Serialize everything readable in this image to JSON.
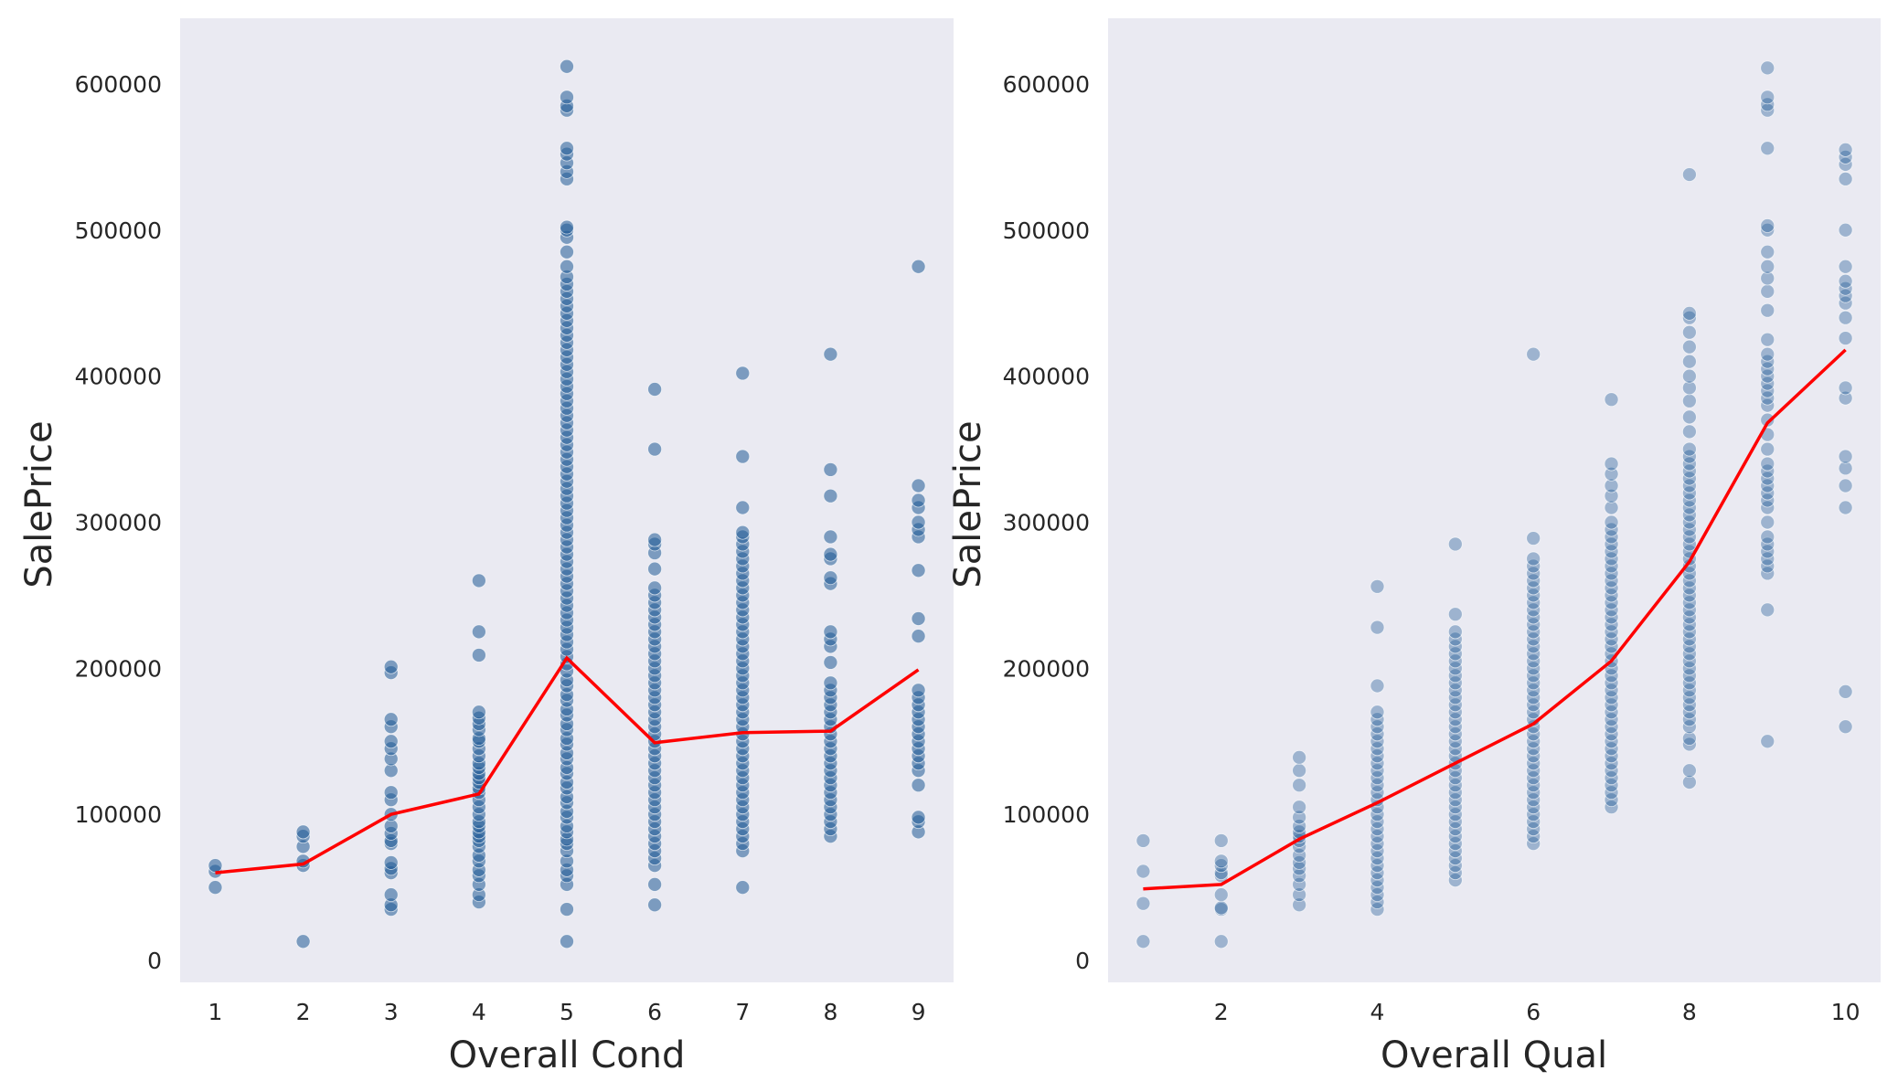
{
  "chart_data": [
    {
      "type": "scatter",
      "xlabel": "Overall Cond",
      "ylabel": "SalePrice",
      "xlim": [
        0.6,
        9.4
      ],
      "ylim": [
        -15000,
        645000
      ],
      "xticks": [
        1,
        2,
        3,
        4,
        5,
        6,
        7,
        8,
        9
      ],
      "yticks": [
        0,
        100000,
        200000,
        300000,
        400000,
        500000,
        600000
      ],
      "grid": false,
      "point_color": "#1f5a96",
      "point_opacity": 0.55,
      "line_color": "#ff0000",
      "background": "#eaeaf2",
      "points": [
        {
          "x": 1,
          "values": [
            50000,
            61000,
            65000
          ]
        },
        {
          "x": 2,
          "values": [
            13000,
            65000,
            68000,
            78000,
            85000,
            88000
          ]
        },
        {
          "x": 3,
          "values": [
            35000,
            38000,
            45000,
            60000,
            63000,
            67000,
            80000,
            82000,
            87000,
            92000,
            100000,
            110000,
            115000,
            130000,
            138000,
            145000,
            150000,
            160000,
            165000,
            197000,
            201000
          ]
        },
        {
          "x": 4,
          "values": [
            40000,
            45000,
            52000,
            58000,
            62000,
            68000,
            72000,
            78000,
            82000,
            85000,
            88000,
            92000,
            95000,
            100000,
            105000,
            110000,
            115000,
            118000,
            122000,
            125000,
            128000,
            132000,
            135000,
            140000,
            145000,
            150000,
            152000,
            158000,
            162000,
            166000,
            170000,
            209000,
            225000,
            260000
          ]
        },
        {
          "x": 5,
          "values": [
            13000,
            35000,
            52000,
            58000,
            62000,
            68000,
            75000,
            80000,
            83000,
            88000,
            92000,
            98000,
            102000,
            108000,
            112000,
            118000,
            122000,
            128000,
            132000,
            138000,
            142000,
            148000,
            152000,
            158000,
            162000,
            168000,
            172000,
            178000,
            182000,
            188000,
            192000,
            198000,
            203000,
            208000,
            213000,
            218000,
            223000,
            228000,
            233000,
            238000,
            243000,
            248000,
            253000,
            258000,
            263000,
            268000,
            273000,
            278000,
            283000,
            288000,
            293000,
            298000,
            303000,
            308000,
            313000,
            318000,
            323000,
            328000,
            333000,
            338000,
            343000,
            348000,
            353000,
            358000,
            363000,
            368000,
            373000,
            378000,
            383000,
            388000,
            393000,
            398000,
            403000,
            408000,
            413000,
            418000,
            423000,
            428000,
            433000,
            438000,
            443000,
            448000,
            453000,
            458000,
            463000,
            468000,
            475000,
            485000,
            495000,
            500000,
            502000,
            535000,
            540000,
            546000,
            552000,
            556000,
            582000,
            585000,
            591000,
            612000
          ]
        },
        {
          "x": 6,
          "values": [
            38000,
            52000,
            65000,
            70000,
            75000,
            80000,
            85000,
            90000,
            95000,
            100000,
            105000,
            110000,
            115000,
            120000,
            125000,
            130000,
            135000,
            140000,
            145000,
            150000,
            155000,
            160000,
            165000,
            170000,
            175000,
            180000,
            185000,
            190000,
            195000,
            200000,
            205000,
            210000,
            215000,
            220000,
            225000,
            230000,
            235000,
            240000,
            245000,
            250000,
            255000,
            268000,
            279000,
            285000,
            288000,
            350000,
            391000
          ]
        },
        {
          "x": 7,
          "values": [
            50000,
            75000,
            80000,
            85000,
            90000,
            95000,
            100000,
            105000,
            110000,
            115000,
            120000,
            125000,
            130000,
            135000,
            140000,
            145000,
            150000,
            155000,
            160000,
            165000,
            170000,
            175000,
            180000,
            185000,
            190000,
            195000,
            200000,
            205000,
            210000,
            215000,
            220000,
            225000,
            230000,
            235000,
            240000,
            245000,
            250000,
            255000,
            260000,
            265000,
            270000,
            275000,
            280000,
            285000,
            290000,
            293000,
            310000,
            345000,
            402000
          ]
        },
        {
          "x": 8,
          "values": [
            85000,
            90000,
            95000,
            100000,
            105000,
            110000,
            115000,
            120000,
            125000,
            130000,
            135000,
            140000,
            145000,
            150000,
            155000,
            160000,
            165000,
            170000,
            175000,
            180000,
            185000,
            190000,
            204000,
            215000,
            220000,
            225000,
            258000,
            262000,
            275000,
            278000,
            290000,
            318000,
            336000,
            415000
          ]
        },
        {
          "x": 9,
          "values": [
            88000,
            95000,
            98000,
            120000,
            130000,
            135000,
            140000,
            145000,
            150000,
            155000,
            160000,
            165000,
            170000,
            175000,
            180000,
            185000,
            222000,
            234000,
            267000,
            290000,
            295000,
            300000,
            310000,
            315000,
            325000,
            475000
          ]
        }
      ],
      "trend": {
        "x": [
          1,
          2,
          3,
          4,
          5,
          6,
          7,
          8,
          9
        ],
        "y": [
          60000,
          66000,
          100000,
          114000,
          207000,
          149000,
          156000,
          157000,
          199000
        ]
      }
    },
    {
      "type": "scatter",
      "xlabel": "Overall Qual",
      "ylabel": "SalePrice",
      "xlim": [
        0.55,
        10.45
      ],
      "ylim": [
        -15000,
        645000
      ],
      "xticks": [
        2,
        4,
        6,
        8,
        10
      ],
      "yticks": [
        0,
        100000,
        200000,
        300000,
        400000,
        500000,
        600000
      ],
      "grid": false,
      "point_color": "#1f5a96",
      "point_opacity": 0.38,
      "line_color": "#ff0000",
      "background": "#eaeaf2",
      "points": [
        {
          "x": 1,
          "values": [
            13000,
            39000,
            61000,
            82000
          ]
        },
        {
          "x": 2,
          "values": [
            13000,
            35000,
            36000,
            45000,
            58000,
            60000,
            65000,
            68000,
            82000
          ]
        },
        {
          "x": 3,
          "values": [
            38000,
            45000,
            52000,
            58000,
            63000,
            67000,
            72000,
            78000,
            82000,
            85000,
            88000,
            92000,
            98000,
            105000,
            120000,
            130000,
            139000
          ]
        },
        {
          "x": 4,
          "values": [
            35000,
            40000,
            45000,
            50000,
            55000,
            60000,
            65000,
            70000,
            75000,
            80000,
            85000,
            90000,
            95000,
            100000,
            105000,
            110000,
            115000,
            120000,
            125000,
            130000,
            135000,
            140000,
            145000,
            150000,
            155000,
            160000,
            165000,
            170000,
            188000,
            228000,
            256000
          ]
        },
        {
          "x": 5,
          "values": [
            55000,
            60000,
            65000,
            70000,
            75000,
            80000,
            85000,
            90000,
            95000,
            100000,
            105000,
            110000,
            115000,
            120000,
            125000,
            130000,
            135000,
            140000,
            145000,
            150000,
            155000,
            160000,
            165000,
            170000,
            175000,
            180000,
            185000,
            190000,
            195000,
            200000,
            205000,
            210000,
            215000,
            220000,
            225000,
            237000,
            285000
          ]
        },
        {
          "x": 6,
          "values": [
            80000,
            85000,
            90000,
            95000,
            100000,
            105000,
            110000,
            115000,
            120000,
            125000,
            130000,
            135000,
            140000,
            145000,
            150000,
            155000,
            160000,
            165000,
            170000,
            175000,
            180000,
            185000,
            190000,
            195000,
            200000,
            205000,
            210000,
            215000,
            220000,
            225000,
            230000,
            235000,
            240000,
            245000,
            250000,
            255000,
            260000,
            265000,
            270000,
            275000,
            289000,
            415000
          ]
        },
        {
          "x": 7,
          "values": [
            105000,
            110000,
            115000,
            120000,
            125000,
            130000,
            135000,
            140000,
            145000,
            150000,
            155000,
            160000,
            165000,
            170000,
            175000,
            180000,
            185000,
            190000,
            195000,
            200000,
            205000,
            210000,
            215000,
            220000,
            225000,
            230000,
            235000,
            240000,
            245000,
            250000,
            255000,
            260000,
            265000,
            270000,
            275000,
            280000,
            285000,
            290000,
            295000,
            300000,
            310000,
            318000,
            325000,
            333000,
            340000,
            384000
          ]
        },
        {
          "x": 8,
          "values": [
            122000,
            130000,
            148000,
            152000,
            160000,
            165000,
            170000,
            175000,
            180000,
            185000,
            190000,
            195000,
            200000,
            205000,
            210000,
            215000,
            220000,
            225000,
            230000,
            235000,
            240000,
            245000,
            250000,
            255000,
            260000,
            265000,
            270000,
            275000,
            280000,
            285000,
            290000,
            295000,
            300000,
            305000,
            310000,
            315000,
            320000,
            325000,
            330000,
            335000,
            340000,
            345000,
            350000,
            362000,
            372000,
            383000,
            392000,
            400000,
            410000,
            420000,
            430000,
            440000,
            443000,
            538000
          ]
        },
        {
          "x": 9,
          "values": [
            150000,
            240000,
            265000,
            270000,
            275000,
            280000,
            285000,
            290000,
            300000,
            310000,
            315000,
            320000,
            325000,
            330000,
            335000,
            340000,
            350000,
            360000,
            370000,
            380000,
            385000,
            390000,
            395000,
            400000,
            405000,
            410000,
            415000,
            425000,
            445000,
            458000,
            467000,
            475000,
            485000,
            500000,
            503000,
            556000,
            582000,
            586000,
            591000,
            611000
          ]
        },
        {
          "x": 10,
          "values": [
            160000,
            184000,
            310000,
            325000,
            337000,
            345000,
            385000,
            392000,
            426000,
            440000,
            450000,
            455000,
            460000,
            465000,
            475000,
            500000,
            535000,
            545000,
            550000,
            555000
          ]
        }
      ],
      "trend": {
        "x": [
          1,
          2,
          3,
          4,
          5,
          6,
          7,
          8,
          9,
          10
        ],
        "y": [
          49000,
          52000,
          83000,
          108000,
          135000,
          162000,
          205000,
          273000,
          368000,
          418000
        ]
      }
    }
  ]
}
